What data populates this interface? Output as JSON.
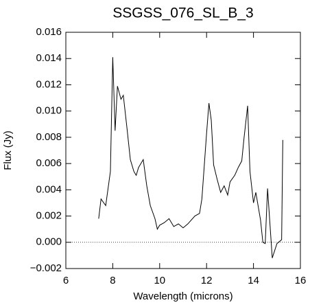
{
  "chart_data": {
    "type": "line",
    "title": "SSGSS_076_SL_B_3",
    "x_label": "Wavelength (microns)",
    "y_label": "Flux (Jy)",
    "x": [
      7.4,
      7.5,
      7.7,
      7.9,
      8.0,
      8.1,
      8.2,
      8.35,
      8.45,
      8.6,
      8.75,
      8.9,
      9.0,
      9.1,
      9.2,
      9.3,
      9.45,
      9.6,
      9.8,
      9.9,
      10.0,
      10.2,
      10.4,
      10.6,
      10.8,
      11.0,
      11.2,
      11.3,
      11.5,
      11.7,
      11.8,
      12.0,
      12.1,
      12.2,
      12.3,
      12.45,
      12.6,
      12.75,
      12.9,
      13.0,
      13.2,
      13.35,
      13.5,
      13.6,
      13.75,
      13.85,
      14.0,
      14.1,
      14.3,
      14.4,
      14.5,
      14.6,
      14.8,
      15.0,
      15.2,
      15.25
    ],
    "series": [
      {
        "color": "#000000",
        "values": [
          0.0018,
          0.0033,
          0.0028,
          0.0054,
          0.0141,
          0.0085,
          0.0119,
          0.0109,
          0.0112,
          0.0088,
          0.0063,
          0.0054,
          0.0051,
          0.0057,
          0.006,
          0.0063,
          0.0043,
          0.0028,
          0.0018,
          0.001,
          0.0013,
          0.0015,
          0.0018,
          0.0012,
          0.0014,
          0.0011,
          0.0014,
          0.0016,
          0.002,
          0.0022,
          0.0033,
          0.0083,
          0.0106,
          0.0093,
          0.0059,
          0.0048,
          0.0038,
          0.0043,
          0.0036,
          0.0046,
          0.0051,
          0.0057,
          0.0062,
          0.008,
          0.0104,
          0.0054,
          0.003,
          0.0038,
          0.0017,
          0.0,
          -0.0001,
          0.0041,
          -0.0012,
          -0.0001,
          0.0002,
          0.0078
        ]
      }
    ],
    "xlim": [
      6,
      16
    ],
    "xticks": [
      6,
      8,
      10,
      12,
      14,
      16
    ],
    "ylim": [
      -0.002,
      0.016
    ],
    "yticks": [
      {
        "value": -0.002,
        "label": "−0.002"
      },
      {
        "value": 0,
        "label": "0.000"
      },
      0.002,
      0.004,
      0.006,
      0.008,
      {
        "value": 0.01,
        "label": "0.010"
      },
      0.012,
      0.014,
      0.016
    ],
    "reference_line": 0
  }
}
